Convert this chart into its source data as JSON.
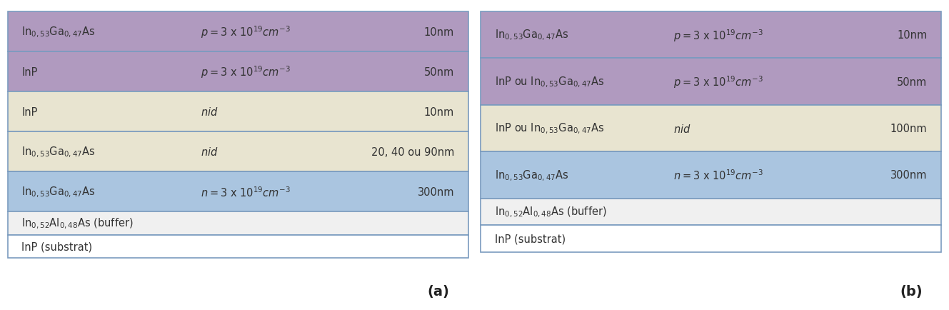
{
  "fig_width": 13.29,
  "fig_height": 4.35,
  "bg_color": "#ffffff",
  "panel_a": {
    "layers": [
      {
        "material": "In$_{0,53}$Ga$_{0,47}$As",
        "doping": "$p = 3$ x $10^{19}$$cm^{-3}$",
        "thickness": "10nm",
        "color": "#b09abf",
        "text_color": "#333333"
      },
      {
        "material": "InP",
        "doping": "$p = 3$ x $10^{19}$$cm^{-3}$",
        "thickness": "50nm",
        "color": "#b09abf",
        "text_color": "#333333"
      },
      {
        "material": "InP",
        "doping": "$nid$",
        "thickness": "10nm",
        "color": "#e8e4d0",
        "text_color": "#333333"
      },
      {
        "material": "In$_{0,53}$Ga$_{0,47}$As",
        "doping": "$nid$",
        "thickness": "20, 40 ou 90nm",
        "color": "#e8e4d0",
        "text_color": "#333333"
      },
      {
        "material": "In$_{0,53}$Ga$_{0,47}$As",
        "doping": "$n = 3$ x $10^{19}$$cm^{-3}$",
        "thickness": "300nm",
        "color": "#aac5e0",
        "text_color": "#333333"
      },
      {
        "material": "In$_{0,52}$Al$_{0,48}$As (buffer)",
        "doping": "",
        "thickness": "",
        "color": "#f0f0f0",
        "text_color": "#333333"
      },
      {
        "material": "InP (substrat)",
        "doping": "",
        "thickness": "",
        "color": "#ffffff",
        "text_color": "#333333"
      }
    ],
    "label": "(a)"
  },
  "panel_b": {
    "layers": [
      {
        "material": "In$_{0,53}$Ga$_{0,47}$As",
        "doping": "$p = 3$ x $10^{19}$$cm^{-3}$",
        "thickness": "10nm",
        "color": "#b09abf",
        "text_color": "#333333"
      },
      {
        "material": "InP ou In$_{0,53}$Ga$_{0,47}$As",
        "doping": "$p = 3$ x $10^{19}$$cm^{-3}$",
        "thickness": "50nm",
        "color": "#b09abf",
        "text_color": "#333333"
      },
      {
        "material": "InP ou In$_{0,53}$Ga$_{0,47}$As",
        "doping": "$nid$",
        "thickness": "100nm",
        "color": "#e8e4d0",
        "text_color": "#333333"
      },
      {
        "material": "In$_{0,53}$Ga$_{0,47}$As",
        "doping": "$n = 3$ x $10^{19}$$cm^{-3}$",
        "thickness": "300nm",
        "color": "#aac5e0",
        "text_color": "#333333"
      },
      {
        "material": "In$_{0,52}$Al$_{0,48}$As (buffer)",
        "doping": "",
        "thickness": "",
        "color": "#f0f0f0",
        "text_color": "#333333"
      },
      {
        "material": "InP (substrat)",
        "doping": "",
        "thickness": "",
        "color": "#ffffff",
        "text_color": "#333333"
      }
    ],
    "label": "(b)"
  },
  "border_color": "#7a9bbf",
  "font_size": 10.5,
  "label_font_size": 14
}
